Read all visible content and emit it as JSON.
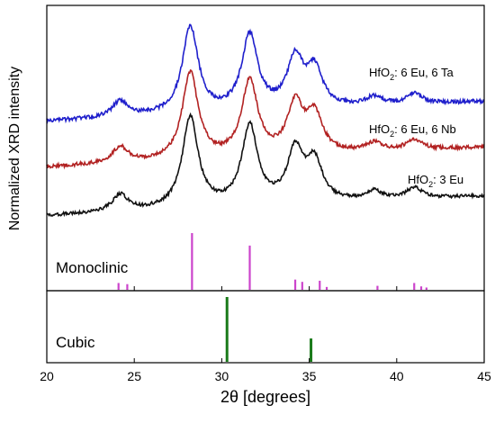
{
  "chart_data": {
    "type": "line",
    "xlabel": "2θ [degrees]",
    "ylabel": "Normalized XRD intensity",
    "xlim": [
      20,
      45
    ],
    "xticks": [
      "20",
      "25",
      "30",
      "35",
      "40",
      "45"
    ],
    "grid": false,
    "series": [
      {
        "name": "HfO₂: 6 Eu, 6 Ta",
        "label_formula": "HfO",
        "label_sub": "2",
        "label_rest": ": 6 Eu, 6 Ta",
        "color": "#1f1fcc",
        "baseline": 0.0,
        "scale": 1.0
      },
      {
        "name": "HfO₂: 6 Eu, 6 Nb",
        "label_formula": "HfO",
        "label_sub": "2",
        "label_rest": ": 6 Eu, 6 Nb",
        "color": "#b22222",
        "baseline": 0.0,
        "scale": 1.0
      },
      {
        "name": "HfO₂: 3 Eu",
        "label_formula": "HfO",
        "label_sub": "2",
        "label_rest": ": 3 Eu",
        "color": "#111111",
        "baseline": 0.0,
        "scale": 1.0
      }
    ],
    "peaks": [
      {
        "x": 24.2,
        "h": 0.17
      },
      {
        "x": 28.2,
        "h": 0.92
      },
      {
        "x": 31.6,
        "h": 0.8
      },
      {
        "x": 34.2,
        "h": 0.52
      },
      {
        "x": 35.3,
        "h": 0.4
      },
      {
        "x": 38.7,
        "h": 0.09
      },
      {
        "x": 41.0,
        "h": 0.11
      }
    ],
    "reference_panels": [
      {
        "name": "Monoclinic",
        "color": "#cc44cc",
        "lines": [
          {
            "x": 24.1,
            "h": 0.12
          },
          {
            "x": 24.6,
            "h": 0.1
          },
          {
            "x": 28.3,
            "h": 1.0
          },
          {
            "x": 31.6,
            "h": 0.78
          },
          {
            "x": 34.2,
            "h": 0.18
          },
          {
            "x": 34.6,
            "h": 0.14
          },
          {
            "x": 35.6,
            "h": 0.16
          },
          {
            "x": 36.0,
            "h": 0.05
          },
          {
            "x": 38.9,
            "h": 0.07
          },
          {
            "x": 41.0,
            "h": 0.12
          },
          {
            "x": 41.4,
            "h": 0.06
          },
          {
            "x": 41.7,
            "h": 0.04
          }
        ]
      },
      {
        "name": "Cubic",
        "color": "#1a7a1a",
        "lines": [
          {
            "x": 30.3,
            "h": 1.0
          },
          {
            "x": 35.1,
            "h": 0.36
          }
        ]
      }
    ]
  }
}
